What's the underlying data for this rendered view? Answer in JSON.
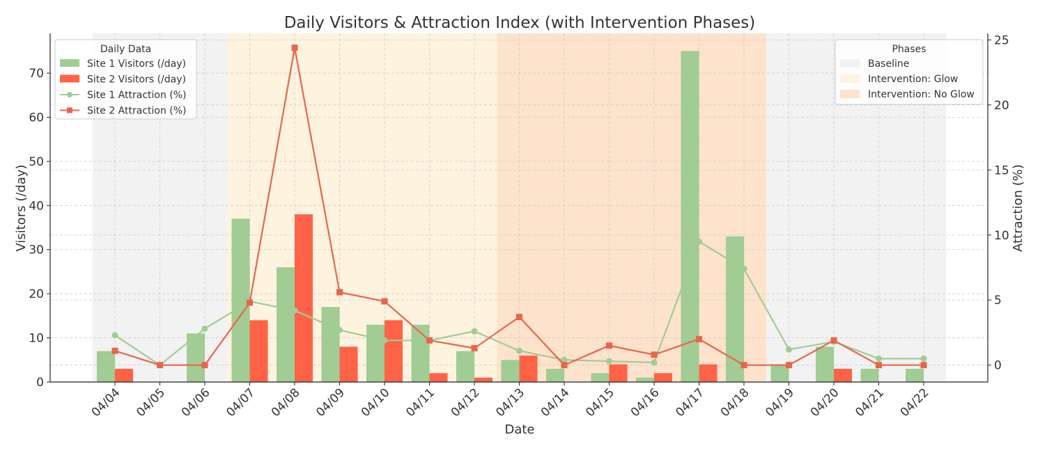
{
  "chart_data": {
    "type": "bar",
    "title": "Daily Visitors & Attraction Index (with Intervention Phases)",
    "xlabel": "Date",
    "ylabel_left": "Visitors (/day)",
    "ylabel_right": "Attraction (%)",
    "ylim_left": [
      0,
      79
    ],
    "ylim_right": [
      -1.3,
      25.5
    ],
    "yticks_left": [
      "0",
      "10",
      "20",
      "30",
      "40",
      "50",
      "60",
      "70"
    ],
    "yticks_right": [
      "0",
      "5",
      "10",
      "15",
      "20",
      "25"
    ],
    "grid": true,
    "categories": [
      "04/04",
      "04/05",
      "04/06",
      "04/07",
      "04/08",
      "04/09",
      "04/10",
      "04/11",
      "04/12",
      "04/13",
      "04/14",
      "04/15",
      "04/16",
      "04/17",
      "04/18",
      "04/19",
      "04/20",
      "04/21",
      "04/22"
    ],
    "series": [
      {
        "name": "Site 1 Visitors (/day)",
        "kind": "bar",
        "axis": "left",
        "color": "#a1cc94",
        "values": [
          7,
          0,
          11,
          37,
          26,
          17,
          13,
          13,
          7,
          5,
          3,
          2,
          1,
          75,
          33,
          4,
          8,
          3,
          3
        ]
      },
      {
        "name": "Site 2 Visitors (/day)",
        "kind": "bar",
        "axis": "left",
        "color": "#ff6347",
        "values": [
          3,
          0,
          0,
          14,
          38,
          8,
          14,
          2,
          1,
          6,
          0,
          4,
          2,
          4,
          0,
          0,
          3,
          0,
          0
        ]
      },
      {
        "name": "Site 1 Attraction (%)",
        "kind": "line",
        "axis": "right",
        "marker": "circle",
        "color": "#a1cc94",
        "values": [
          2.3,
          0,
          2.8,
          4.9,
          4.2,
          2.7,
          1.9,
          1.9,
          2.6,
          1.1,
          0.4,
          0.3,
          0.2,
          9.5,
          7.4,
          1.2,
          1.8,
          0.5,
          0.5
        ]
      },
      {
        "name": "Site 2 Attraction (%)",
        "kind": "line",
        "axis": "right",
        "marker": "square",
        "color": "#e8654b",
        "values": [
          1.1,
          0,
          0,
          4.8,
          24.4,
          5.6,
          4.9,
          1.9,
          1.3,
          3.7,
          0,
          1.5,
          0.8,
          2.0,
          0,
          0,
          1.9,
          0,
          0
        ]
      }
    ],
    "phases": [
      {
        "name": "Baseline",
        "color": "#f2f2f2",
        "start": 0,
        "end": 2
      },
      {
        "name": "Intervention: Glow",
        "color": "#fdf3df",
        "start": 3,
        "end": 8
      },
      {
        "name": "Intervention: No Glow",
        "color": "#fde2cc",
        "start": 9,
        "end": 14
      },
      {
        "name": "Baseline",
        "color": "#f2f2f2",
        "start": 15,
        "end": 18
      }
    ],
    "legend_left": {
      "title": "Daily Data",
      "placement": "upper-left"
    },
    "legend_right": {
      "title": "Phases",
      "placement": "upper-right",
      "entries": [
        {
          "label": "Baseline",
          "color": "#f2f2f2"
        },
        {
          "label": "Intervention: Glow",
          "color": "#fdf3df"
        },
        {
          "label": "Intervention: No Glow",
          "color": "#fde2cc"
        }
      ]
    }
  }
}
